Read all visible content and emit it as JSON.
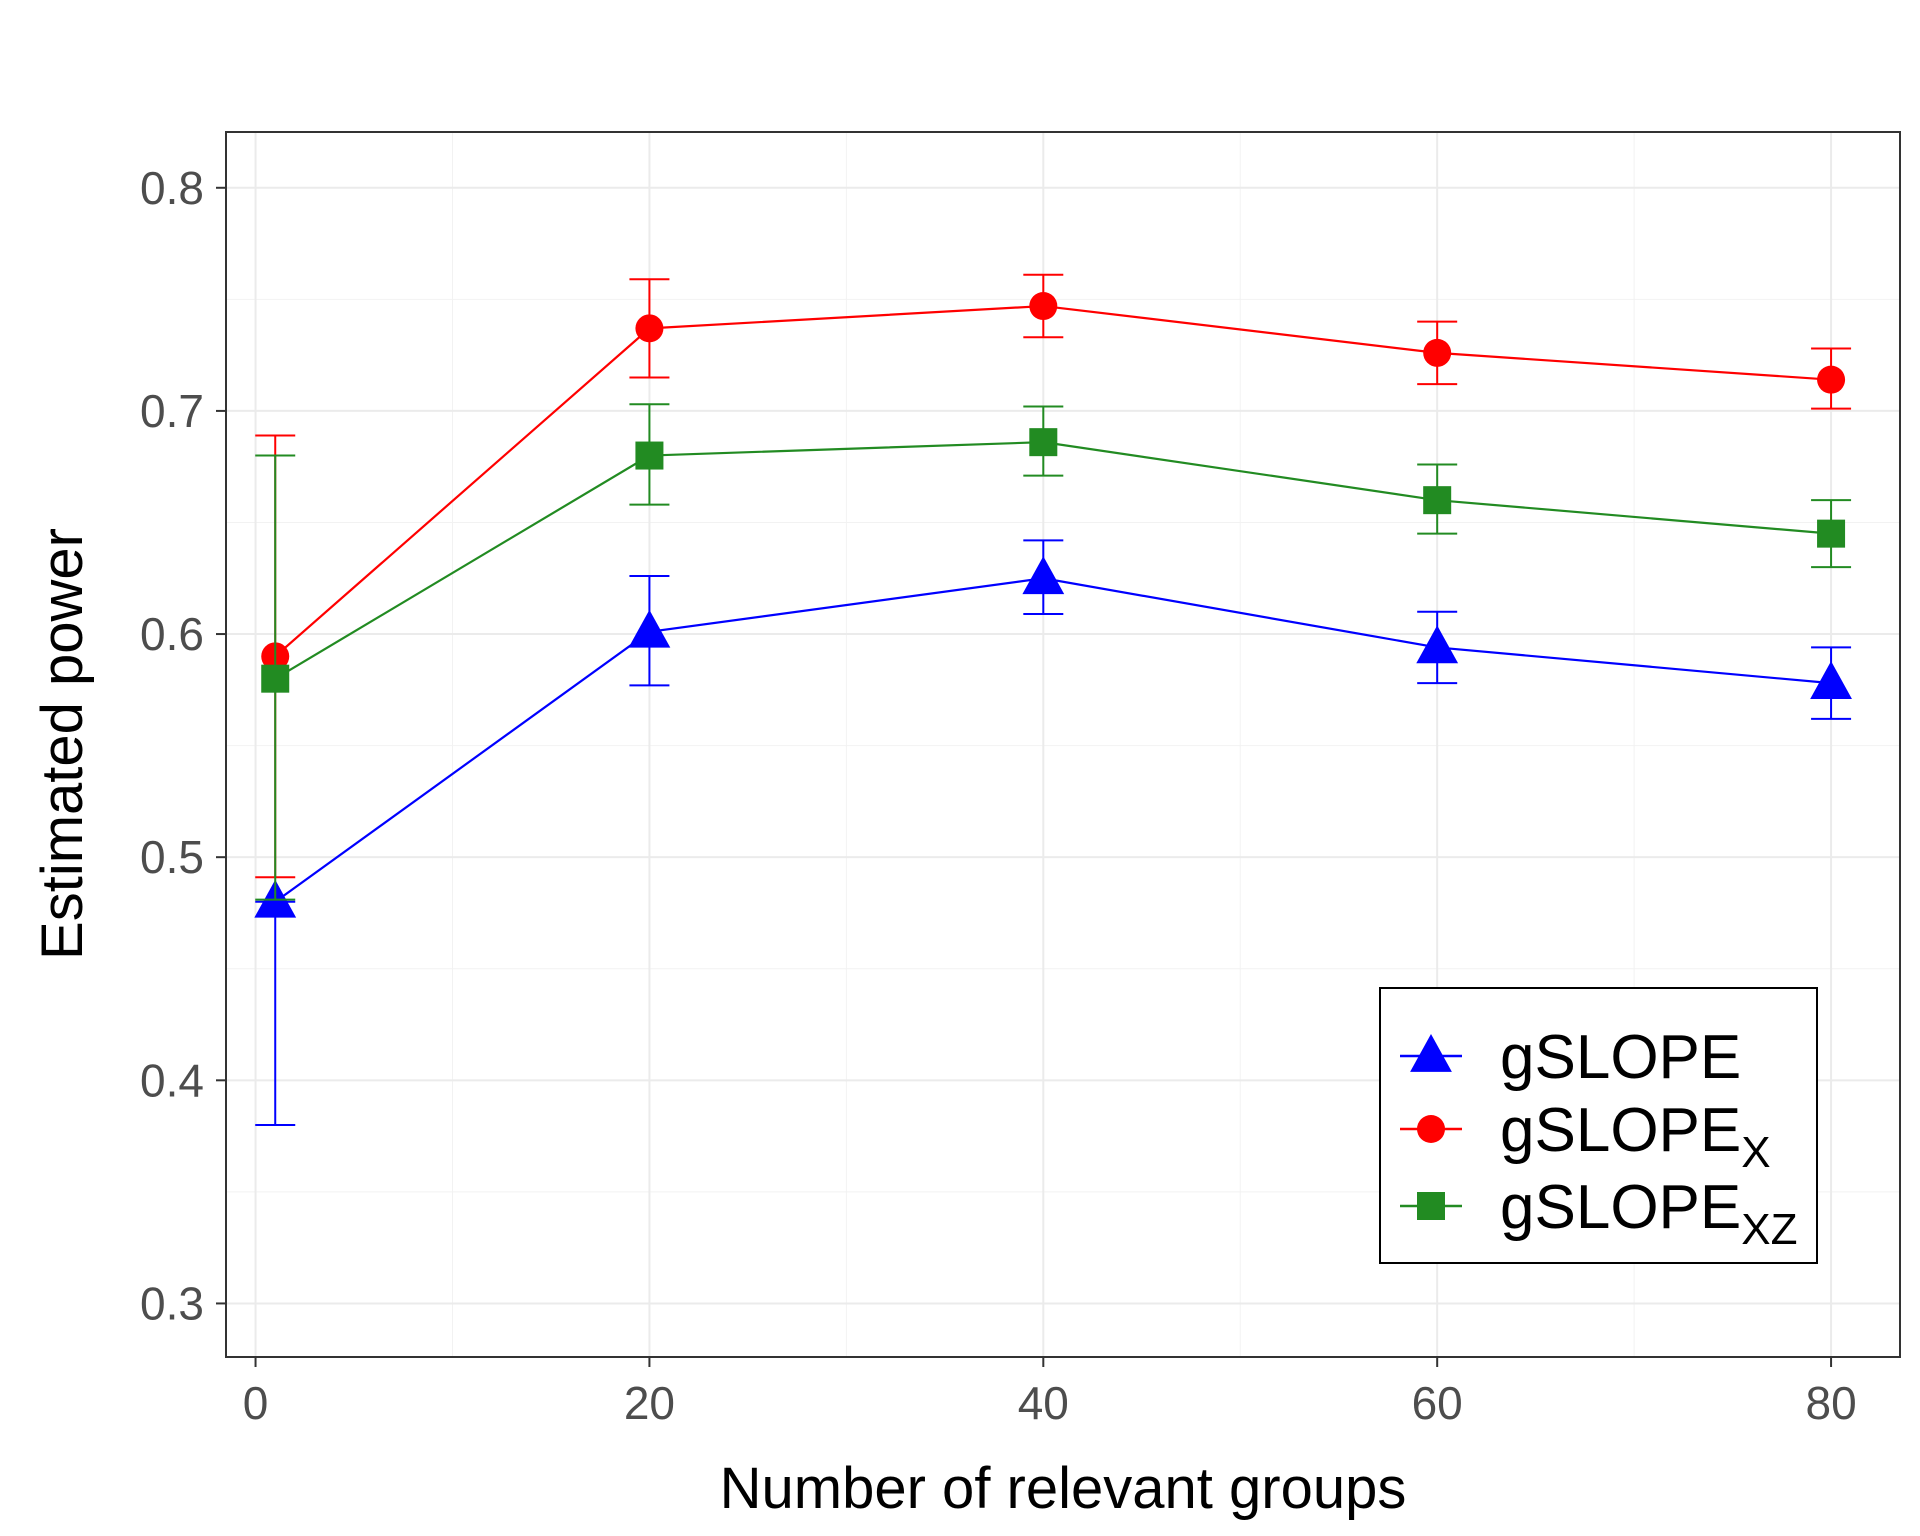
{
  "chart_data": {
    "type": "line",
    "title": "",
    "xlabel": "Number of relevant groups",
    "ylabel": "Estimated power",
    "xlim": [
      -1.5,
      83.5
    ],
    "ylim": [
      0.276,
      0.825
    ],
    "x_ticks": [
      0,
      20,
      40,
      60,
      80
    ],
    "x_tick_labels": [
      "0",
      "20",
      "40",
      "60",
      "80"
    ],
    "y_ticks": [
      0.3,
      0.4,
      0.5,
      0.6,
      0.7,
      0.8
    ],
    "y_tick_labels": [
      "0.3",
      "0.4",
      "0.5",
      "0.6",
      "0.7",
      "0.8"
    ],
    "grid": true,
    "legend_position": "bottom-right",
    "error_bars": true,
    "series": [
      {
        "name": "gSLOPE",
        "legend_base": "gSLOPE",
        "legend_sub": "",
        "color": "#0000ff",
        "marker": "triangle",
        "x": [
          1,
          20,
          40,
          60,
          80
        ],
        "y": [
          0.48,
          0.601,
          0.625,
          0.594,
          0.578
        ],
        "err_low": [
          0.38,
          0.577,
          0.609,
          0.578,
          0.562
        ],
        "err_high": [
          0.48,
          0.626,
          0.642,
          0.61,
          0.594
        ]
      },
      {
        "name": "gSLOPEX",
        "legend_base": "gSLOPE",
        "legend_sub": "X",
        "color": "#ff0000",
        "marker": "circle",
        "x": [
          1,
          20,
          40,
          60,
          80
        ],
        "y": [
          0.59,
          0.737,
          0.747,
          0.726,
          0.714
        ],
        "err_low": [
          0.491,
          0.715,
          0.733,
          0.712,
          0.701
        ],
        "err_high": [
          0.689,
          0.759,
          0.761,
          0.74,
          0.728
        ]
      },
      {
        "name": "gSLOPEXZ",
        "legend_base": "gSLOPE",
        "legend_sub": "XZ",
        "color": "#228b22",
        "marker": "square",
        "x": [
          1,
          20,
          40,
          60,
          80
        ],
        "y": [
          0.58,
          0.68,
          0.686,
          0.66,
          0.645
        ],
        "err_low": [
          0.481,
          0.658,
          0.671,
          0.645,
          0.63
        ],
        "err_high": [
          0.68,
          0.703,
          0.702,
          0.676,
          0.66
        ]
      }
    ]
  }
}
